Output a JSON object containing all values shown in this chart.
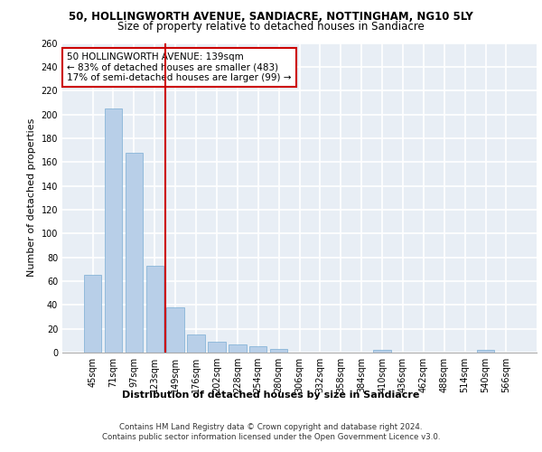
{
  "title1": "50, HOLLINGWORTH AVENUE, SANDIACRE, NOTTINGHAM, NG10 5LY",
  "title2": "Size of property relative to detached houses in Sandiacre",
  "xlabel": "Distribution of detached houses by size in Sandiacre",
  "ylabel": "Number of detached properties",
  "categories": [
    "45sqm",
    "71sqm",
    "97sqm",
    "123sqm",
    "149sqm",
    "176sqm",
    "202sqm",
    "228sqm",
    "254sqm",
    "280sqm",
    "306sqm",
    "332sqm",
    "358sqm",
    "384sqm",
    "410sqm",
    "436sqm",
    "462sqm",
    "488sqm",
    "514sqm",
    "540sqm",
    "566sqm"
  ],
  "values": [
    65,
    205,
    168,
    73,
    38,
    15,
    9,
    7,
    5,
    3,
    0,
    0,
    0,
    0,
    2,
    0,
    0,
    0,
    0,
    2,
    0
  ],
  "bar_color": "#b8cfe8",
  "bar_edge_color": "#7aadd4",
  "vline_color": "#cc0000",
  "vline_x_index": 3.5,
  "annotation_text": "50 HOLLINGWORTH AVENUE: 139sqm\n← 83% of detached houses are smaller (483)\n17% of semi-detached houses are larger (99) →",
  "annotation_box_color": "white",
  "annotation_box_edge": "#cc0000",
  "ylim": [
    0,
    260
  ],
  "yticks": [
    0,
    20,
    40,
    60,
    80,
    100,
    120,
    140,
    160,
    180,
    200,
    220,
    240,
    260
  ],
  "footer1": "Contains HM Land Registry data © Crown copyright and database right 2024.",
  "footer2": "Contains public sector information licensed under the Open Government Licence v3.0.",
  "bg_color": "#e8eef5",
  "grid_color": "#ffffff",
  "title1_fontsize": 8.5,
  "title2_fontsize": 8.5,
  "tick_fontsize": 7,
  "ylabel_fontsize": 8,
  "xlabel_fontsize": 8,
  "annotation_fontsize": 7.5,
  "footer_fontsize": 6.2
}
